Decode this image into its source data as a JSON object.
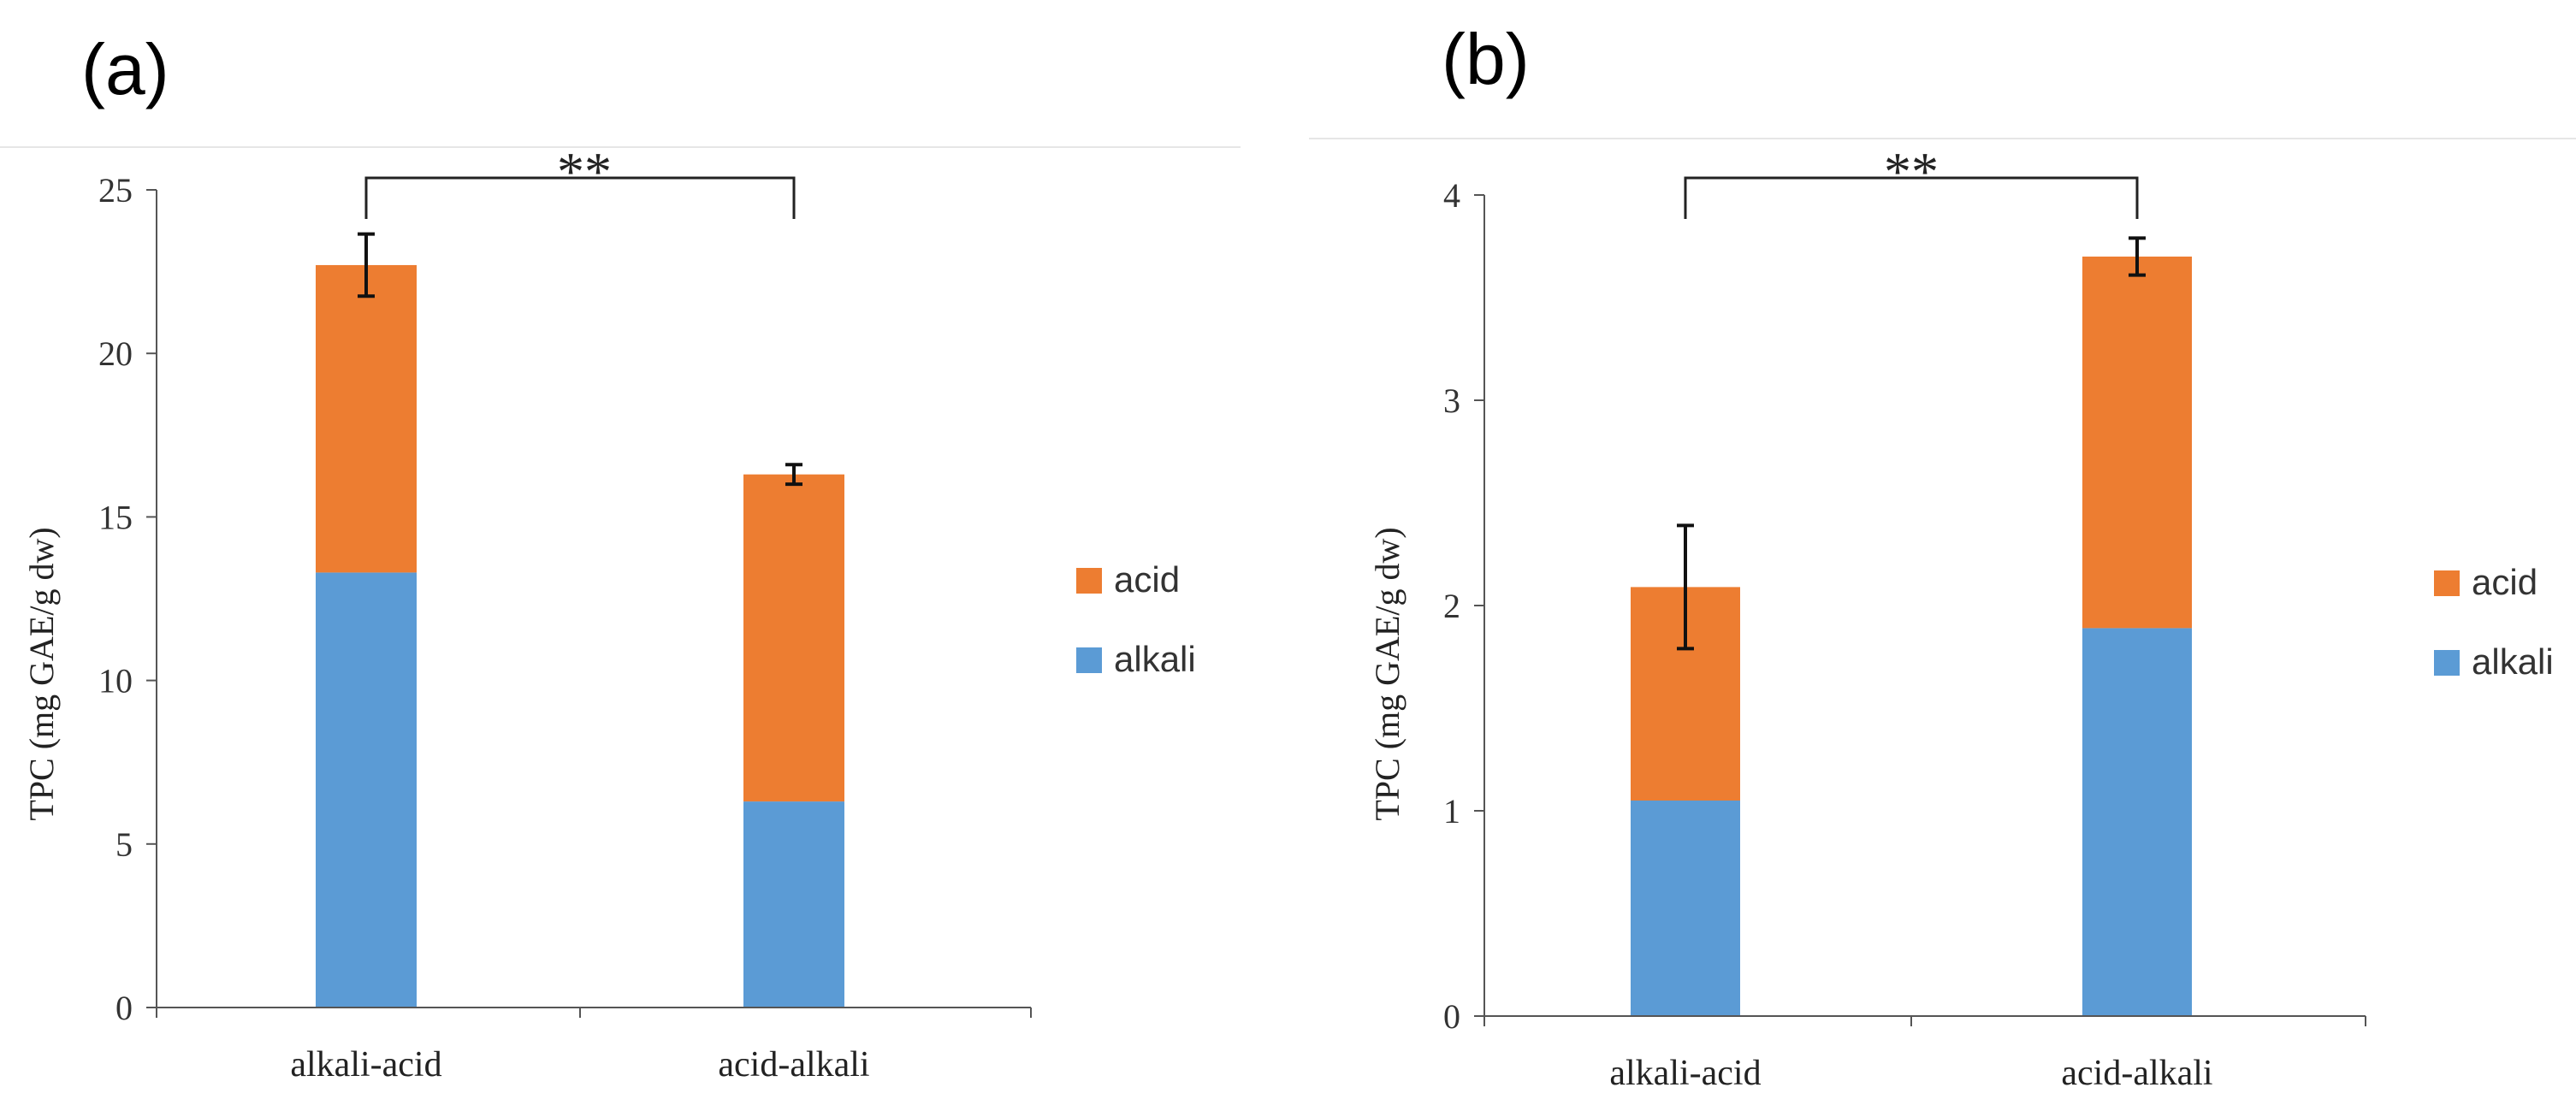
{
  "chart_data": [
    {
      "panel": "(a)",
      "type": "bar",
      "stacked": true,
      "categories": [
        "alkali-acid",
        "acid-alkali"
      ],
      "series": [
        {
          "name": "alkali",
          "color": "#5b9bd5",
          "values": [
            13.3,
            6.3
          ]
        },
        {
          "name": "acid",
          "color": "#ed7d31",
          "values": [
            9.4,
            10.0
          ]
        }
      ],
      "totals": [
        22.7,
        16.3
      ],
      "error": [
        0.95,
        0.3
      ],
      "ylabel": "TPC (mg GAE/g dw)",
      "xlabel": "",
      "ylim": [
        0,
        25
      ],
      "yticks": [
        "0",
        "5",
        "10",
        "15",
        "20",
        "25"
      ],
      "yticks_values": [
        0,
        5,
        10,
        15,
        20,
        25
      ],
      "legend": [
        "acid",
        "alkali"
      ],
      "legend_position": "right",
      "significance": {
        "text": "**",
        "between": [
          0,
          1
        ]
      }
    },
    {
      "panel": "(b)",
      "type": "bar",
      "stacked": true,
      "categories": [
        "alkali-acid",
        "acid-alkali"
      ],
      "series": [
        {
          "name": "alkali",
          "color": "#5b9bd5",
          "values": [
            1.05,
            1.89
          ]
        },
        {
          "name": "acid",
          "color": "#ed7d31",
          "values": [
            1.04,
            1.81
          ]
        }
      ],
      "totals": [
        2.09,
        3.7
      ],
      "error": [
        0.3,
        0.09
      ],
      "ylabel": "TPC (mg GAE/g dw)",
      "xlabel": "",
      "ylim": [
        0,
        4
      ],
      "yticks": [
        "0",
        "1",
        "2",
        "3",
        "4"
      ],
      "yticks_values": [
        0,
        1,
        2,
        3,
        4
      ],
      "legend": [
        "acid",
        "alkali"
      ],
      "legend_position": "right",
      "significance": {
        "text": "**",
        "between": [
          0,
          1
        ]
      }
    }
  ]
}
